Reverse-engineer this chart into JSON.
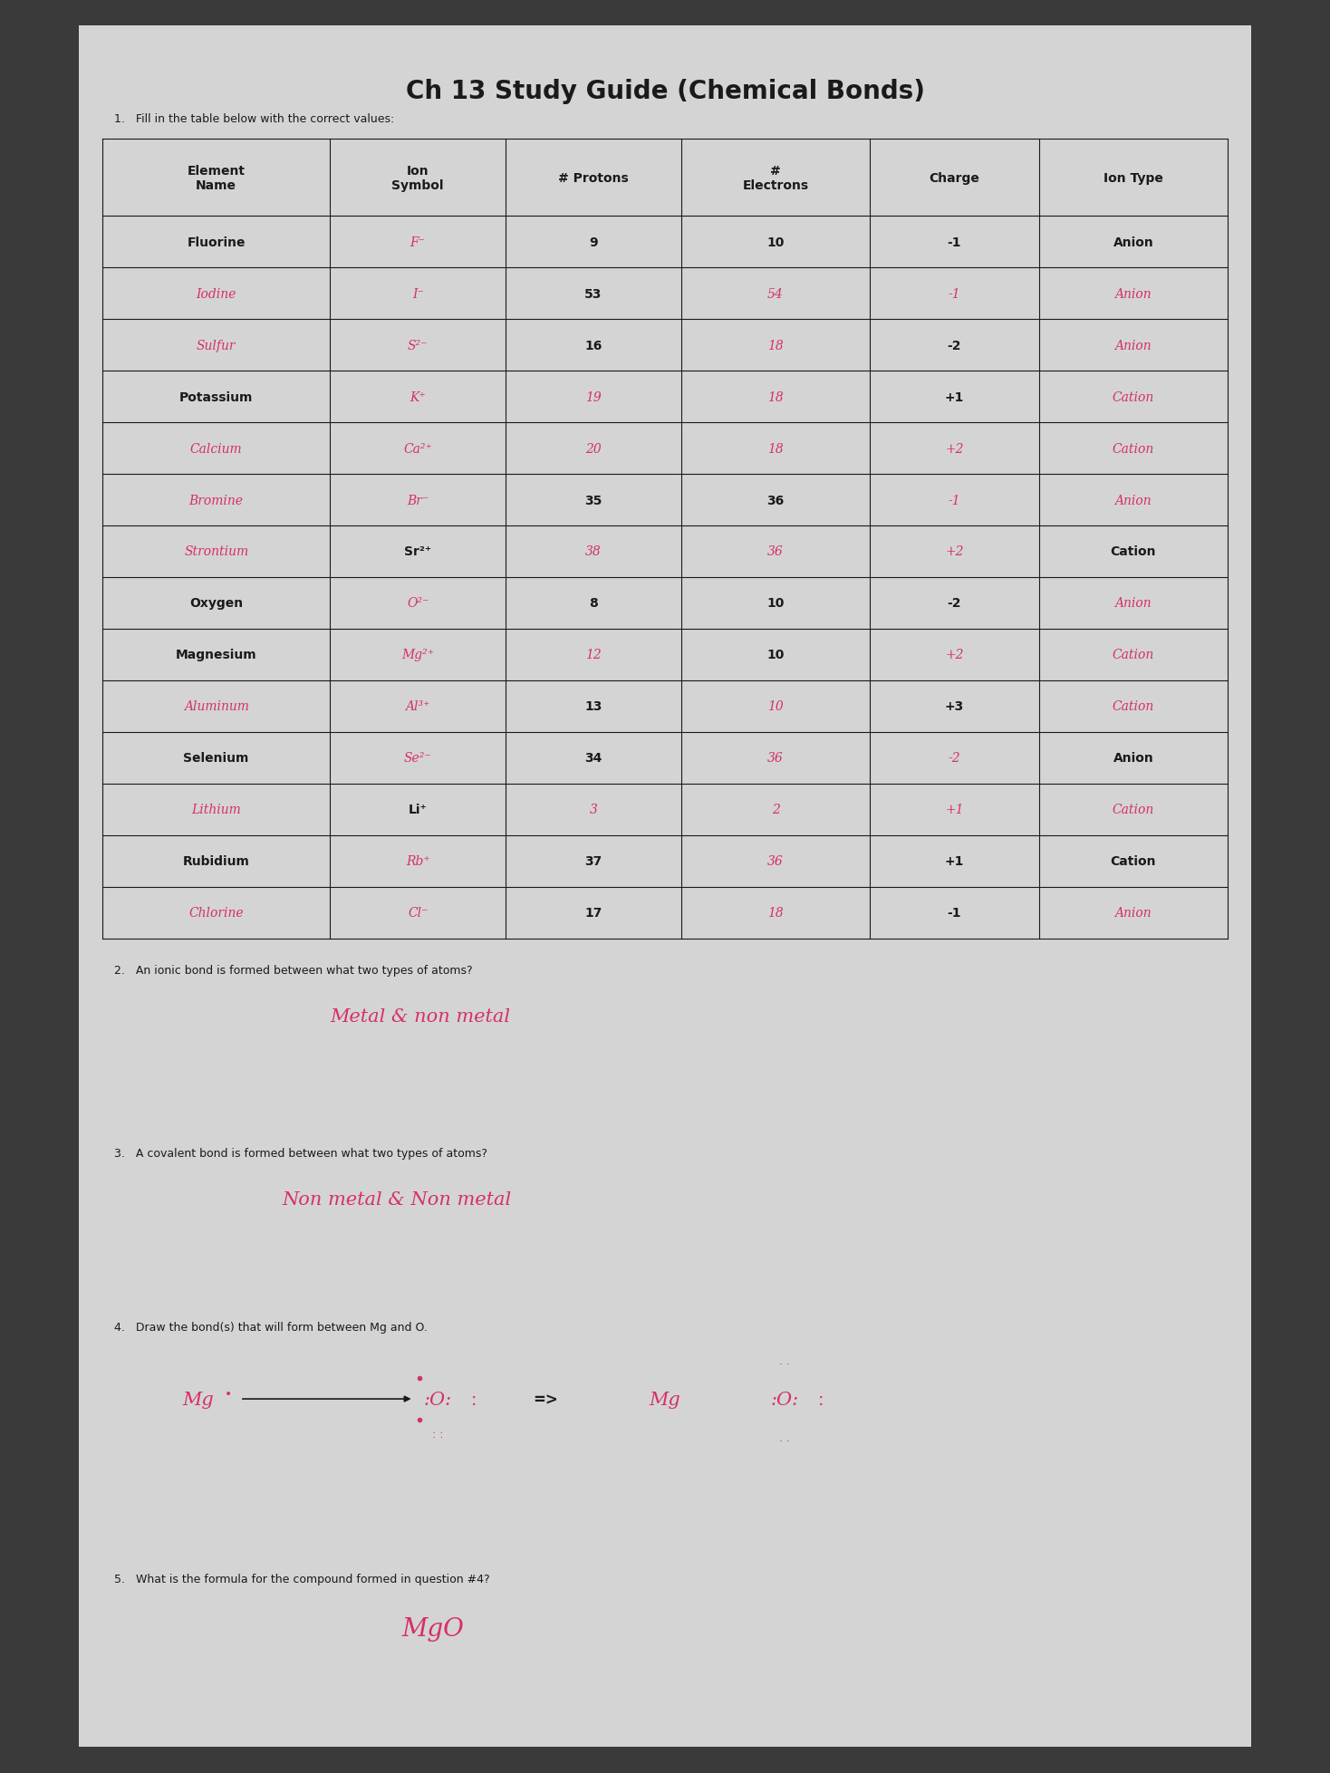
{
  "title": "Ch 13 Study Guide (Chemical Bonds)",
  "bg_color": "#3a3a3a",
  "paper_color": "#c8c8c8",
  "paper_inner_color": "#d0d0d0",
  "question1": "1.   Fill in the table below with the correct values:",
  "table_headers_line1": [
    "Element",
    "Ion",
    "# Protons",
    "#",
    "Charge",
    "Ion Type"
  ],
  "table_headers_line2": [
    "Name",
    "Symbol",
    "",
    "Electrons",
    "",
    ""
  ],
  "table_rows": [
    [
      "Fluorine",
      "F⁻",
      "9",
      "10",
      "-1",
      "Anion"
    ],
    [
      "Iodine",
      "I⁻",
      "53",
      "54",
      "-1",
      "Anion"
    ],
    [
      "Sulfur",
      "S²⁻",
      "16",
      "18",
      "-2",
      "Anion"
    ],
    [
      "Potassium",
      "K⁺",
      "19",
      "18",
      "+1",
      "Cation"
    ],
    [
      "Calcium",
      "Ca²⁺",
      "20",
      "18",
      "+2",
      "Cation"
    ],
    [
      "Bromine",
      "Br⁻",
      "35",
      "36",
      "-1",
      "Anion"
    ],
    [
      "Strontium",
      "Sr²⁺",
      "38",
      "36",
      "+2",
      "Cation"
    ],
    [
      "Oxygen",
      "O²⁻",
      "8",
      "10",
      "-2",
      "Anion"
    ],
    [
      "Magnesium",
      "Mg²⁺",
      "12",
      "10",
      "+2",
      "Cation"
    ],
    [
      "Aluminum",
      "Al³⁺",
      "13",
      "10",
      "+3",
      "Cation"
    ],
    [
      "Selenium",
      "Se²⁻",
      "34",
      "36",
      "-2",
      "Anion"
    ],
    [
      "Lithium",
      "Li⁺",
      "3",
      "2",
      "+1",
      "Cation"
    ],
    [
      "Rubidium",
      "Rb⁺",
      "37",
      "36",
      "+1",
      "Cation"
    ],
    [
      "Chlorine",
      "Cl⁻",
      "17",
      "18",
      "-1",
      "Anion"
    ]
  ],
  "cell_styles": [
    [
      true,
      false,
      true,
      true,
      true,
      true
    ],
    [
      false,
      false,
      true,
      false,
      false,
      false
    ],
    [
      false,
      false,
      true,
      false,
      true,
      false
    ],
    [
      true,
      false,
      false,
      false,
      true,
      false
    ],
    [
      false,
      false,
      false,
      false,
      false,
      false
    ],
    [
      false,
      false,
      true,
      true,
      false,
      false
    ],
    [
      false,
      true,
      false,
      false,
      false,
      true
    ],
    [
      true,
      false,
      true,
      true,
      true,
      false
    ],
    [
      true,
      false,
      false,
      true,
      false,
      false
    ],
    [
      false,
      false,
      true,
      false,
      true,
      false
    ],
    [
      true,
      false,
      true,
      false,
      false,
      true
    ],
    [
      false,
      true,
      false,
      false,
      false,
      false
    ],
    [
      true,
      false,
      true,
      false,
      true,
      true
    ],
    [
      false,
      false,
      true,
      false,
      true,
      false
    ]
  ],
  "pink_color": "#d63068",
  "black_color": "#1a1a1a",
  "q2_label": "2.   An ionic bond is formed between what two types of atoms?",
  "q2_answer": "Metal & non metal",
  "q3_label": "3.   A covalent bond is formed between what two types of atoms?",
  "q3_answer": "Non metal & Non metal",
  "q4_label": "4.   Draw the bond(s) that will form between Mg and O.",
  "q5_label": "5.   What is the formula for the compound formed in question #4?",
  "q5_answer": "MgO"
}
